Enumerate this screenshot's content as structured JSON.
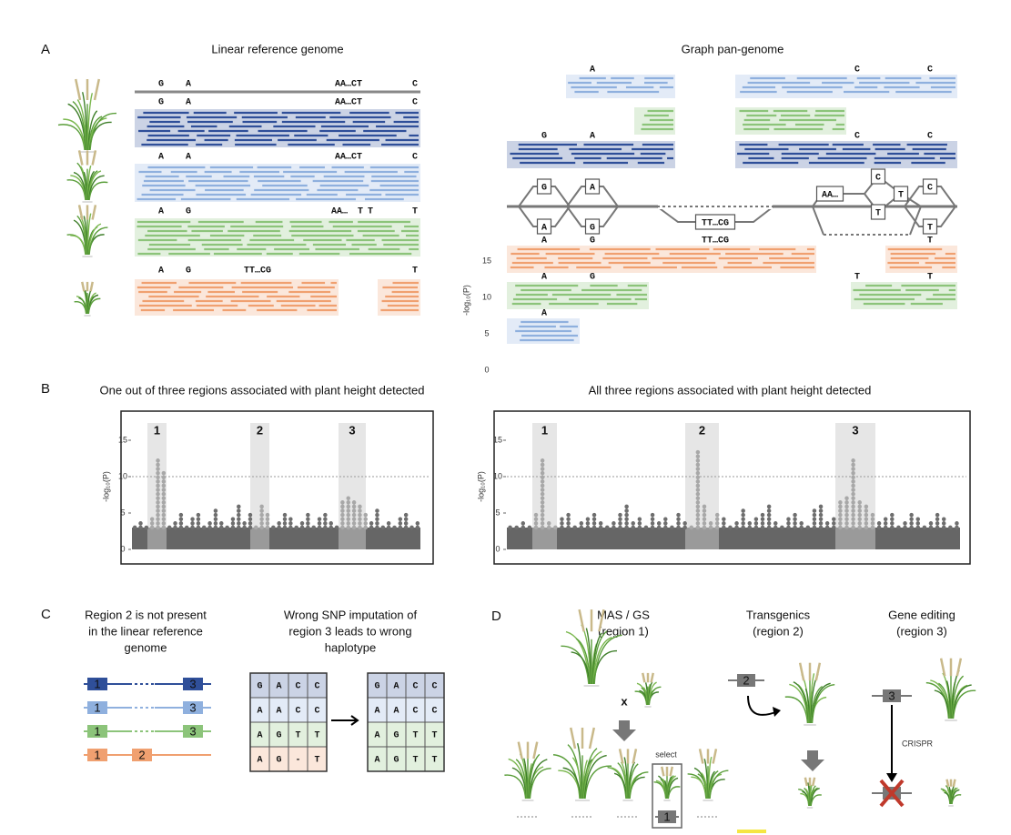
{
  "panel_a": {
    "label": "A",
    "left_title": "Linear reference genome",
    "right_title": "Graph pan-genome",
    "reference": [
      "G",
      "A",
      "AA…CT",
      "C"
    ],
    "linear_tracks": [
      {
        "color": "#2f4f99",
        "letters": [
          {
            "text": "G",
            "color": "#888888"
          },
          {
            "text": "A",
            "color": "#888888"
          },
          {
            "text": "AA…CT",
            "color": "#888888"
          },
          {
            "text": "C",
            "color": "#888888"
          }
        ]
      },
      {
        "color": "#8fb0de",
        "letters": [
          {
            "text": "A",
            "color": "#c00000"
          },
          {
            "text": "A",
            "color": "#888888"
          },
          {
            "text": "AA…CT",
            "color": "#888888"
          },
          {
            "text": "C",
            "color": "#888888"
          }
        ]
      },
      {
        "color": "#8cc47a",
        "letters": [
          {
            "text": "A",
            "color": "#c00000"
          },
          {
            "text": "G",
            "color": "#c00000"
          },
          {
            "text": "AA…",
            "color": "#888888"
          },
          {
            "text": "T",
            "color": "#c00000"
          },
          {
            "text": "T",
            "color": "#888888"
          },
          {
            "text": "T",
            "color": "#c00000"
          }
        ]
      },
      {
        "color": "#f0a070",
        "letters": [
          {
            "text": "A",
            "color": "#c00000"
          },
          {
            "text": "G",
            "color": "#c00000"
          },
          {
            "text": "TT…CG",
            "color": "#c00000"
          },
          {
            "text": "T",
            "color": "#c00000"
          }
        ]
      }
    ],
    "graph_tracks": [
      {
        "color": "#8fb0de",
        "letters": [
          {
            "text": "A",
            "color": "#888888"
          },
          {
            "text": "C",
            "color": "#888888"
          },
          {
            "text": "C",
            "color": "#888888"
          }
        ]
      },
      {
        "color": "#8cc47a",
        "letters": []
      },
      {
        "color": "#2f4f99",
        "letters": [
          {
            "text": "G",
            "color": "#888888"
          },
          {
            "text": "A",
            "color": "#888888"
          },
          {
            "text": "C",
            "color": "#888888"
          },
          {
            "text": "C",
            "color": "#888888"
          }
        ]
      },
      {
        "color": "#f0a070",
        "letters": [
          {
            "text": "A",
            "color": "#c00000"
          },
          {
            "text": "G",
            "color": "#c00000"
          },
          {
            "text": "TT…CG",
            "color": "#c00000"
          },
          {
            "text": "T",
            "color": "#c00000"
          }
        ]
      },
      {
        "color": "#8cc47a",
        "letters": [
          {
            "text": "A",
            "color": "#c00000"
          },
          {
            "text": "G",
            "color": "#c00000"
          },
          {
            "text": "T",
            "color": "#c00000"
          },
          {
            "text": "T",
            "color": "#c00000"
          }
        ]
      },
      {
        "color": "#8fb0de",
        "letters": [
          {
            "text": "A",
            "color": "#c00000"
          }
        ]
      }
    ],
    "graph_nodes": [
      "G",
      "A",
      "A",
      "G",
      "TT…CG",
      "AA…",
      "C",
      "T",
      "T",
      "C",
      "T"
    ],
    "axis_label": "-log₁₀(P)",
    "yticks": [
      15,
      10,
      5,
      0
    ]
  },
  "panel_b": {
    "label": "B",
    "axis_label": "-log₁₀(P)",
    "ylim": [
      -2,
      19
    ],
    "yticks": [
      0,
      5,
      10,
      15
    ],
    "threshold": 10,
    "plots": [
      {
        "title": "One out of three regions associated with plant height detected",
        "region_labels": [
          "1",
          "2",
          "3"
        ],
        "values": [
          3.5,
          4,
          3,
          4.5,
          12.4,
          11,
          3.5,
          4,
          5,
          3,
          4.5,
          5,
          3.5,
          4,
          5.5,
          4,
          3,
          4.5,
          6.2,
          4,
          5,
          3.5,
          6,
          5,
          3.5,
          4,
          5,
          4.5,
          3,
          4,
          5,
          3.5,
          4.5,
          5,
          4,
          3.5,
          7,
          7.5,
          6.5,
          6,
          5,
          4,
          5.5,
          3.5,
          4,
          3,
          4.5,
          5,
          3.5,
          4
        ]
      },
      {
        "title": "All three regions associated with plant height detected",
        "region_labels": [
          "1",
          "2",
          "3"
        ],
        "values": [
          3.5,
          3,
          4,
          3.5,
          5,
          12.5,
          4,
          3.5,
          4.5,
          5,
          3.5,
          4,
          4.5,
          5,
          4,
          3.5,
          4,
          5,
          6.3,
          4,
          4.5,
          3.5,
          5,
          4,
          4.5,
          3.5,
          5,
          4,
          3.5,
          13.5,
          6,
          4,
          5,
          4.5,
          3.5,
          4,
          5.5,
          4,
          4.5,
          5,
          6,
          4,
          3.5,
          4.5,
          5,
          4,
          3.5,
          5.5,
          6,
          4,
          4.5,
          7,
          7.5,
          12.3,
          6.5,
          6,
          5,
          4,
          4.5,
          5,
          3.5,
          4,
          5,
          4.5,
          3.5,
          4,
          5,
          4.5,
          3.5,
          4
        ]
      }
    ]
  },
  "panel_c": {
    "label": "C",
    "left_text": [
      "Region 2 is not present",
      "in the linear reference",
      "genome"
    ],
    "right_text": [
      "Wrong SNP imputation of",
      "region 3 leads to wrong",
      "haplotype"
    ],
    "tracks": [
      {
        "color": "#2f4f99",
        "boxes": [
          "1",
          "3"
        ]
      },
      {
        "color": "#8fb0de",
        "boxes": [
          "1",
          "3"
        ]
      },
      {
        "color": "#8cc47a",
        "boxes": [
          "1",
          "3"
        ]
      },
      {
        "color": "#f0a070",
        "boxes": [
          "1",
          "2"
        ]
      }
    ],
    "grid_before": [
      [
        "G",
        "A",
        "C",
        "C"
      ],
      [
        "A",
        "A",
        "C",
        "C"
      ],
      [
        "A",
        "G",
        "T",
        "T"
      ],
      [
        "A",
        "G",
        "-",
        "T"
      ]
    ],
    "grid_after": [
      [
        "G",
        "A",
        "C",
        "C"
      ],
      [
        "A",
        "A",
        "C",
        "C"
      ],
      [
        "A",
        "G",
        "T",
        "T"
      ],
      [
        "A",
        "G",
        "T",
        "T"
      ]
    ]
  },
  "panel_d": {
    "label": "D",
    "columns": [
      [
        "MAS / GS",
        "(region 1)"
      ],
      [
        "Transgenics",
        "(region 2)"
      ],
      [
        "Gene editing",
        "(region 3)"
      ]
    ],
    "cross": "x",
    "select": "select",
    "crispr": "CRISPR",
    "markers": [
      "1",
      "2",
      "3"
    ]
  }
}
